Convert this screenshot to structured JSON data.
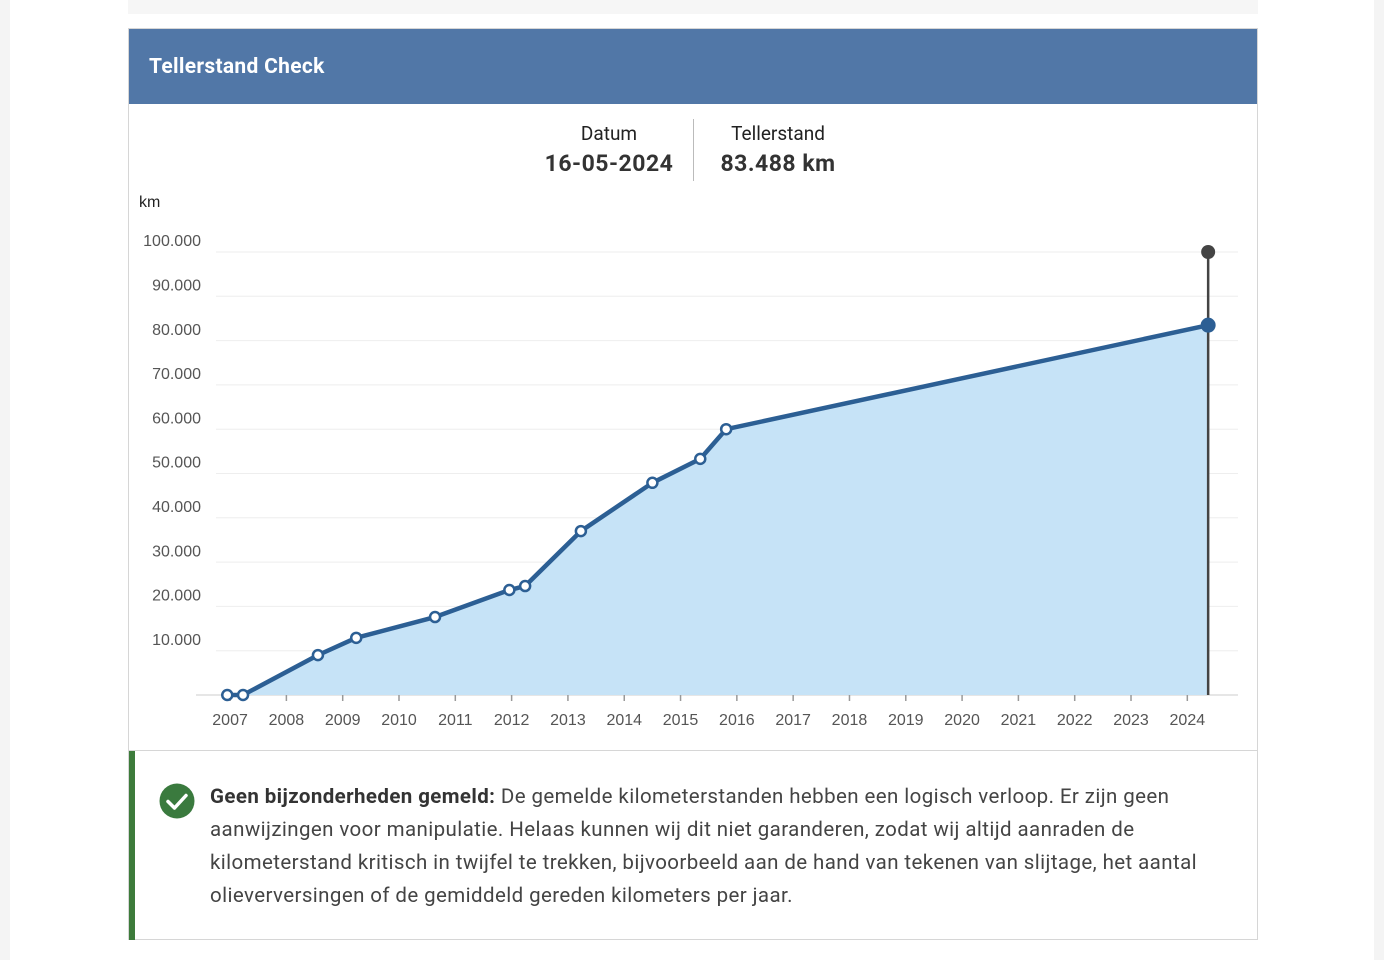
{
  "header": {
    "title": "Tellerstand Check"
  },
  "summary": {
    "date_label": "Datum",
    "date_value": "16-05-2024",
    "reading_label": "Tellerstand",
    "reading_value": "83.488 km"
  },
  "chart_data": {
    "type": "area",
    "y_label": "km",
    "x": [
      2006.95,
      2007.23,
      2008.56,
      2009.24,
      2010.64,
      2011.96,
      2012.24,
      2013.23,
      2014.5,
      2015.35,
      2015.81,
      2024.37
    ],
    "series": [
      {
        "color": "#2c5f94",
        "fill": "#c6e3f7",
        "values": [
          0,
          0,
          9000,
          12900,
          17600,
          23700,
          24600,
          37000,
          47900,
          53300,
          60000,
          83488
        ]
      }
    ],
    "current_marker": {
      "x": 2024.37,
      "y": 100000,
      "color": "#444444"
    },
    "xlim": [
      2006.75,
      2024.9
    ],
    "xticks": [
      2007,
      2008,
      2009,
      2010,
      2011,
      2012,
      2013,
      2014,
      2015,
      2016,
      2017,
      2018,
      2019,
      2020,
      2021,
      2022,
      2023,
      2024
    ],
    "ylim": [
      0,
      100000
    ],
    "yticks": [
      {
        "value": 10000,
        "label": "10.000"
      },
      {
        "value": 20000,
        "label": "20.000"
      },
      {
        "value": 30000,
        "label": "30.000"
      },
      {
        "value": 40000,
        "label": "40.000"
      },
      {
        "value": 50000,
        "label": "50.000"
      },
      {
        "value": 60000,
        "label": "60.000"
      },
      {
        "value": 70000,
        "label": "70.000"
      },
      {
        "value": 80000,
        "label": "80.000"
      },
      {
        "value": 90000,
        "label": "90.000"
      },
      {
        "value": 100000,
        "label": "100.000"
      }
    ],
    "grid": true
  },
  "message": {
    "title": "Geen bijzonderheden gemeld:",
    "body": "De gemelde kilometerstanden hebben een logisch verloop. Er zijn geen aanwijzingen voor manipulatie. Helaas kunnen wij dit niet garanderen, zodat wij altijd aanraden de kilometerstand kritisch in twijfel te trekken, bijvoorbeeld aan de hand van tekenen van slijtage, het aantal olieverversingen of de gemiddeld gereden kilometers per jaar."
  }
}
